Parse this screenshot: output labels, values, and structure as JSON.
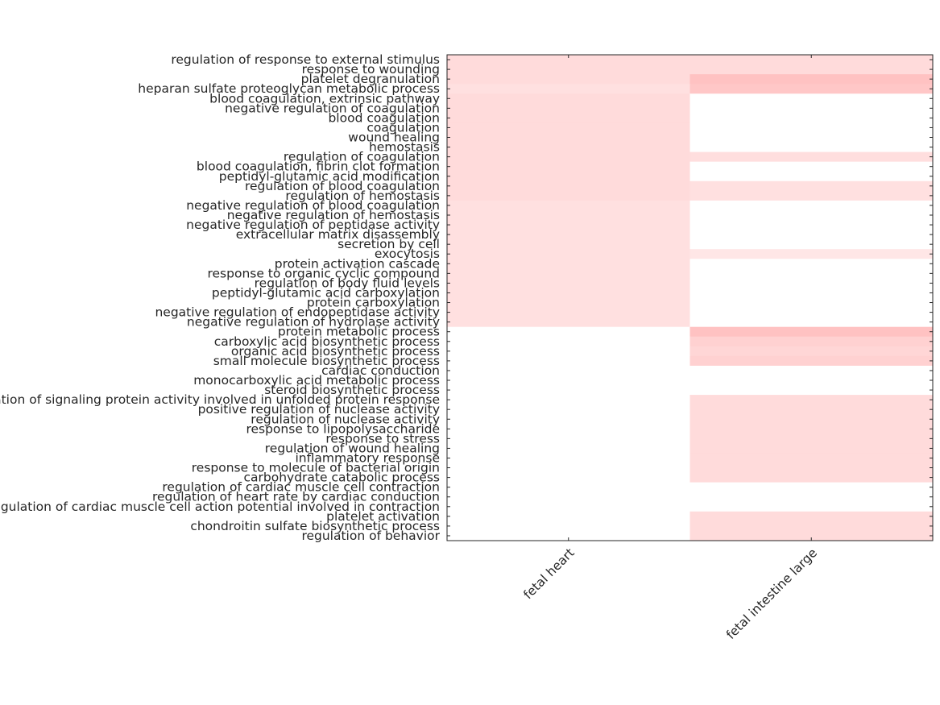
{
  "chart_data": {
    "type": "heatmap",
    "title": "",
    "xlabel": "",
    "ylabel": "",
    "columns": [
      "fetal heart",
      "fetal intestine large"
    ],
    "rows": [
      "regulation of response to external stimulus",
      "response to wounding",
      "platelet degranulation",
      "heparan sulfate proteoglycan metabolic process",
      "blood coagulation, extrinsic pathway",
      "negative regulation of coagulation",
      "blood coagulation",
      "coagulation",
      "wound healing",
      "hemostasis",
      "regulation of coagulation",
      "blood coagulation, fibrin clot formation",
      "peptidyl-glutamic acid modification",
      "regulation of blood coagulation",
      "regulation of hemostasis",
      "negative regulation of blood coagulation",
      "negative regulation of hemostasis",
      "negative regulation of peptidase activity",
      "extracellular matrix disassembly",
      "secretion by cell",
      "exocytosis",
      "protein activation cascade",
      "response to organic cyclic compound",
      "regulation of body fluid levels",
      "peptidyl-glutamic acid carboxylation",
      "protein carboxylation",
      "negative regulation of endopeptidase activity",
      "negative regulation of hydrolase activity",
      "protein metabolic process",
      "carboxylic acid biosynthetic process",
      "organic acid biosynthetic process",
      "small molecule biosynthetic process",
      "cardiac conduction",
      "monocarboxylic acid metabolic process",
      "steroid biosynthetic process",
      "regulation of signaling protein activity involved in unfolded protein response",
      "positive regulation of nuclease activity",
      "regulation of nuclease activity",
      "response to lipopolysaccharide",
      "response to stress",
      "regulation of wound healing",
      "inflammatory response",
      "response to molecule of bacterial origin",
      "carbohydrate catabolic process",
      "regulation of cardiac muscle cell contraction",
      "regulation of heart rate by cardiac conduction",
      "regulation of cardiac muscle cell action potential involved in contraction",
      "platelet activation",
      "chondroitin sulfate biosynthetic process",
      "regulation of behavior"
    ],
    "values": [
      [
        0.14,
        0.14
      ],
      [
        0.14,
        0.14
      ],
      [
        0.14,
        0.24
      ],
      [
        0.12,
        0.22
      ],
      [
        0.14,
        0
      ],
      [
        0.14,
        0
      ],
      [
        0.14,
        0
      ],
      [
        0.14,
        0
      ],
      [
        0.14,
        0
      ],
      [
        0.14,
        0
      ],
      [
        0.14,
        0.13
      ],
      [
        0.14,
        0
      ],
      [
        0.14,
        0
      ],
      [
        0.14,
        0.12
      ],
      [
        0.14,
        0.12
      ],
      [
        0.12,
        0
      ],
      [
        0.12,
        0
      ],
      [
        0.12,
        0
      ],
      [
        0.12,
        0
      ],
      [
        0.12,
        0
      ],
      [
        0.12,
        0.1
      ],
      [
        0.12,
        0
      ],
      [
        0.12,
        0
      ],
      [
        0.12,
        0
      ],
      [
        0.12,
        0
      ],
      [
        0.12,
        0
      ],
      [
        0.12,
        0
      ],
      [
        0.12,
        0
      ],
      [
        0,
        0.24
      ],
      [
        0,
        0.18
      ],
      [
        0,
        0.16
      ],
      [
        0,
        0.18
      ],
      [
        0,
        0
      ],
      [
        0,
        0
      ],
      [
        0,
        0
      ],
      [
        0,
        0.14
      ],
      [
        0,
        0.14
      ],
      [
        0,
        0.14
      ],
      [
        0,
        0.14
      ],
      [
        0,
        0.14
      ],
      [
        0,
        0.14
      ],
      [
        0,
        0.14
      ],
      [
        0,
        0.14
      ],
      [
        0,
        0.14
      ],
      [
        0,
        0
      ],
      [
        0,
        0
      ],
      [
        0,
        0
      ],
      [
        0,
        0.14
      ],
      [
        0,
        0.14
      ],
      [
        0,
        0.14
      ]
    ],
    "color_low": "#ffffff",
    "color_high": "#ff0000",
    "grid": false
  }
}
